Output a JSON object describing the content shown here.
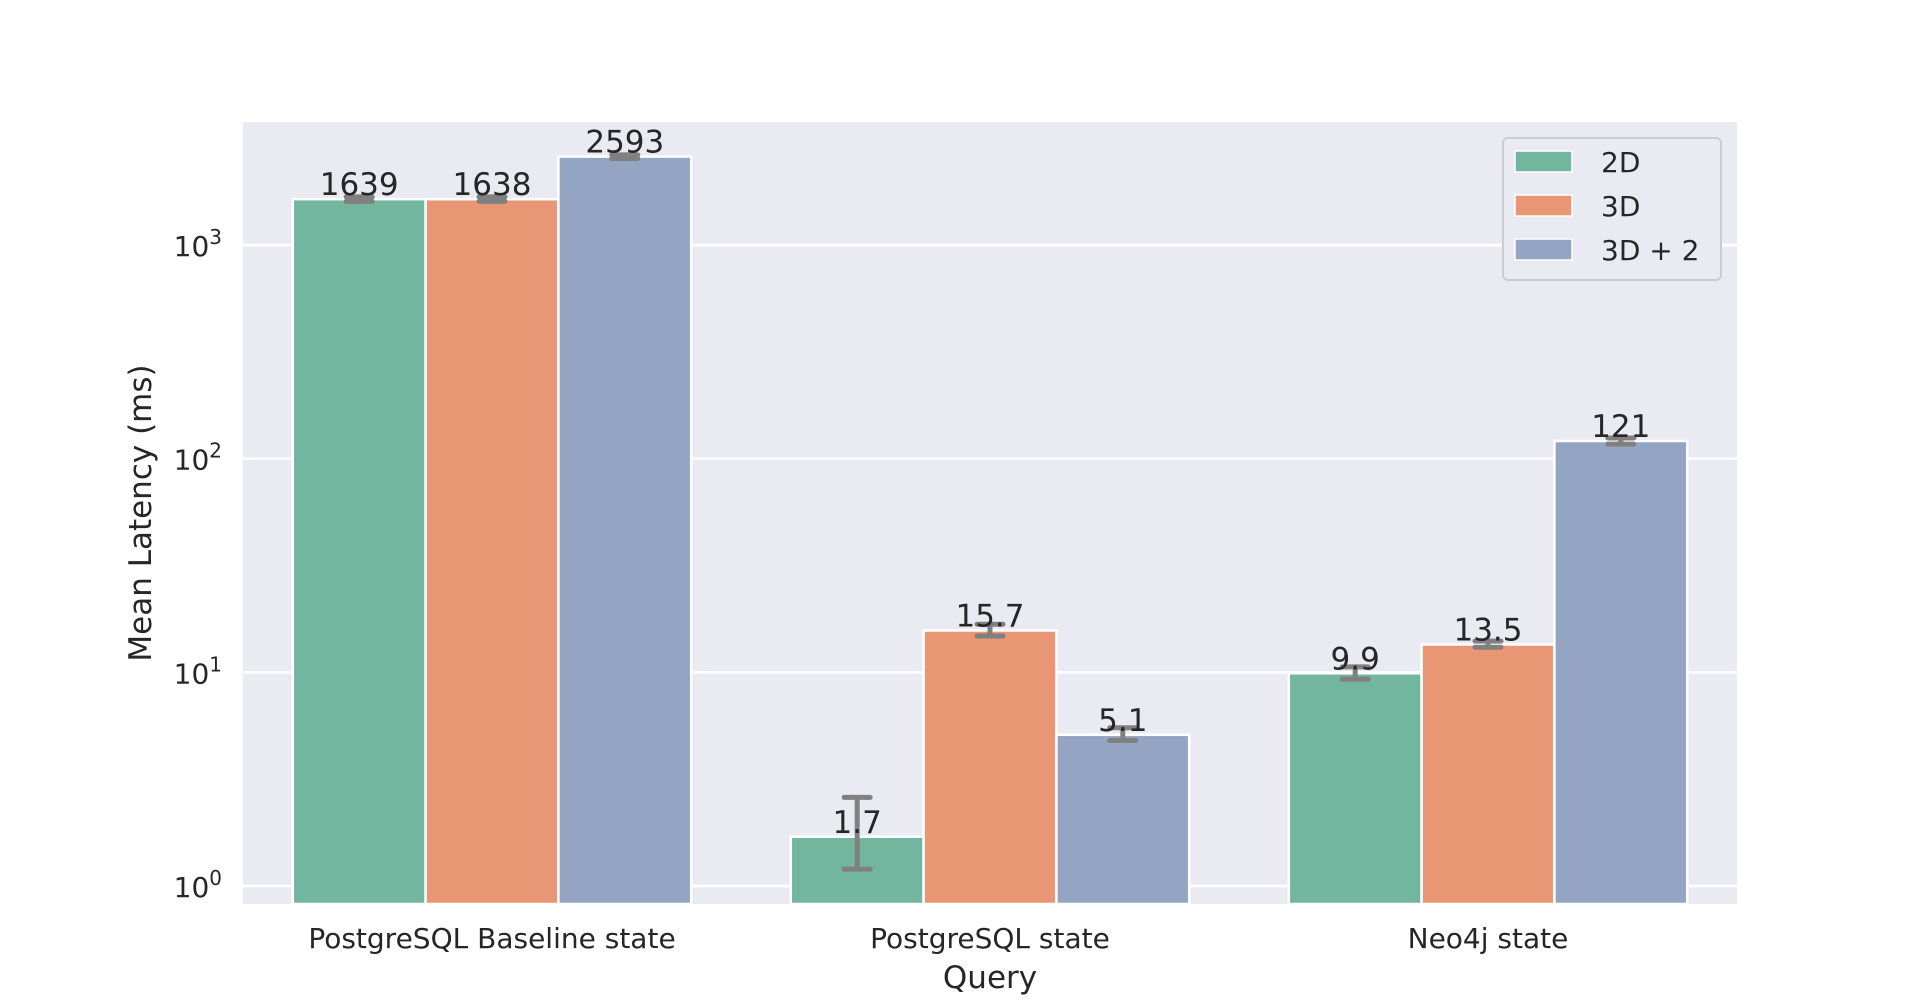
{
  "chart_data": {
    "type": "bar",
    "title": "",
    "xlabel": "Query",
    "ylabel": "Mean Latency (ms)",
    "yscale": "log",
    "ylim": [
      0.8,
      4000
    ],
    "yticks": [
      {
        "value": 1,
        "base": "10",
        "exp": "0"
      },
      {
        "value": 10,
        "base": "10",
        "exp": "1"
      },
      {
        "value": 100,
        "base": "10",
        "exp": "2"
      },
      {
        "value": 1000,
        "base": "10",
        "exp": "3"
      }
    ],
    "grid": true,
    "legend_position": "top-right",
    "categories": [
      "PostgreSQL Baseline state",
      "PostgreSQL state",
      "Neo4j state"
    ],
    "series": [
      {
        "name": "2D",
        "color": "#72b6a0",
        "values": [
          1639,
          1.7,
          9.9
        ],
        "labels": [
          "1639",
          "1.7",
          "9.9"
        ],
        "err_low": [
          1600,
          1.2,
          9.3
        ],
        "err_high": [
          1680,
          2.6,
          10.6
        ]
      },
      {
        "name": "3D",
        "color": "#e99675",
        "values": [
          1638,
          15.7,
          13.5
        ],
        "labels": [
          "1638",
          "15.7",
          "13.5"
        ],
        "err_low": [
          1600,
          14.8,
          13.1
        ],
        "err_high": [
          1680,
          16.8,
          14.0
        ]
      },
      {
        "name": "3D + 2",
        "color": "#94a5c3",
        "values": [
          2593,
          5.1,
          121
        ],
        "labels": [
          "2593",
          "5.1",
          "121"
        ],
        "err_low": [
          2540,
          4.8,
          117
        ],
        "err_high": [
          2640,
          5.5,
          125
        ]
      }
    ]
  }
}
